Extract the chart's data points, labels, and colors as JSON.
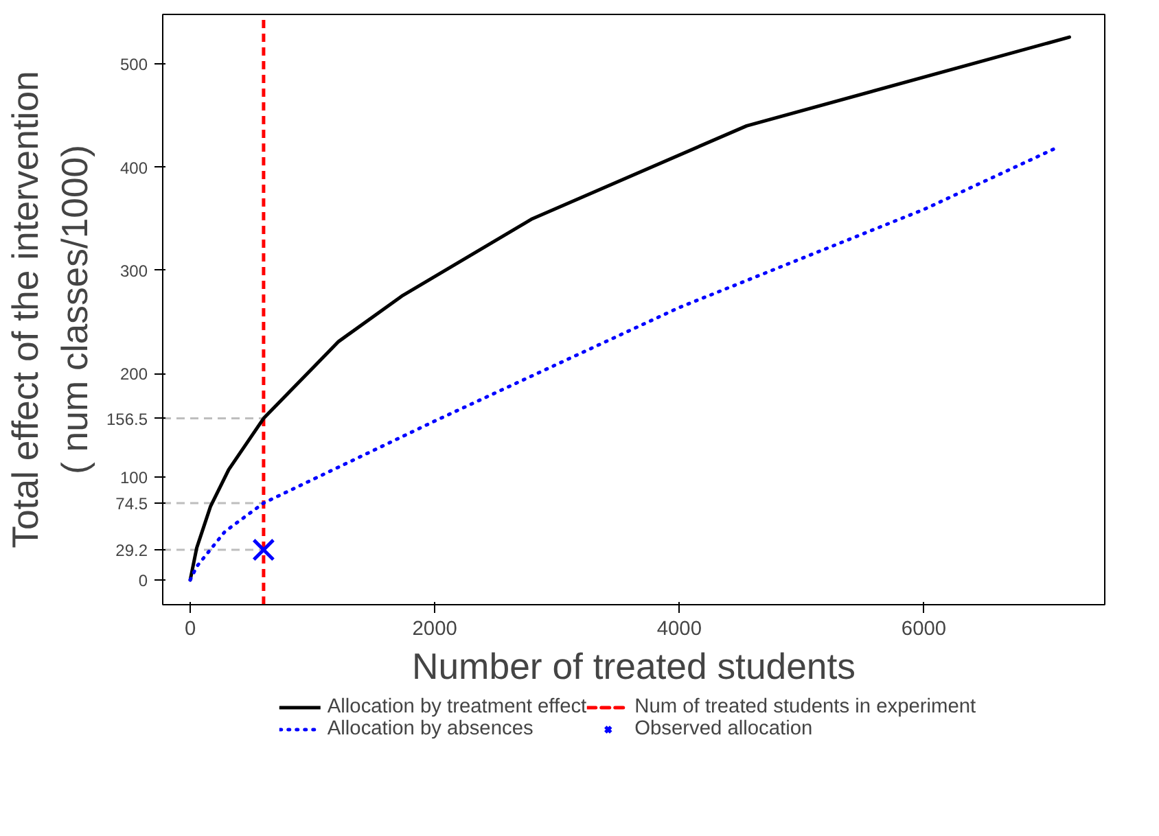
{
  "chart_data": {
    "type": "line",
    "xlabel": "Number of treated students",
    "ylabel": "Total effect of the intervention\n( num classes/1000)",
    "xlim": [
      -225,
      7480
    ],
    "ylim": [
      -24,
      548
    ],
    "xticks": [
      0,
      2000,
      4000,
      6000
    ],
    "yticks": [
      0,
      {
        "value": 29.2,
        "label": "29.2"
      },
      {
        "value": 74.5,
        "label": "74.5"
      },
      100,
      {
        "value": 156.5,
        "label": "156.5"
      },
      200,
      300,
      400,
      500
    ],
    "grid": false,
    "legend": "bottom",
    "series": [
      {
        "name": "Allocation by treatment effect",
        "color": "#000000",
        "line_style": "solid",
        "marker": "none",
        "x": [
          0,
          53,
          165,
          315,
          600,
          1213,
          1730,
          2798,
          4551,
          7191
        ],
        "values": [
          0,
          31,
          71,
          107,
          156.5,
          231,
          275,
          350,
          440,
          526
        ]
      },
      {
        "name": "Allocation by absences",
        "color": "#0000ff",
        "line_style": "dotted",
        "marker": "none",
        "x": [
          0,
          53,
          285,
          600,
          2000,
          4000,
          6000,
          7090
        ],
        "values": [
          0,
          13,
          47,
          74.5,
          154,
          264,
          359,
          419
        ]
      },
      {
        "name": "Observed allocation",
        "type": "scatter",
        "color": "#0000ff",
        "marker": "cross",
        "x": [
          600
        ],
        "values": [
          29.2
        ]
      }
    ],
    "ref_lines": [
      {
        "axis": "x",
        "value": 600,
        "label": "Num of treated students in experiment",
        "color": "#ff0000",
        "line_style": "dashed"
      },
      {
        "axis": "y",
        "value": 156.5,
        "color": "#bebebe",
        "line_style": "dashed"
      },
      {
        "axis": "y",
        "value": 74.5,
        "color": "#bebebe",
        "line_style": "dashed"
      },
      {
        "axis": "y",
        "value": 29.2,
        "color": "#bebebe",
        "line_style": "dashed"
      }
    ]
  }
}
